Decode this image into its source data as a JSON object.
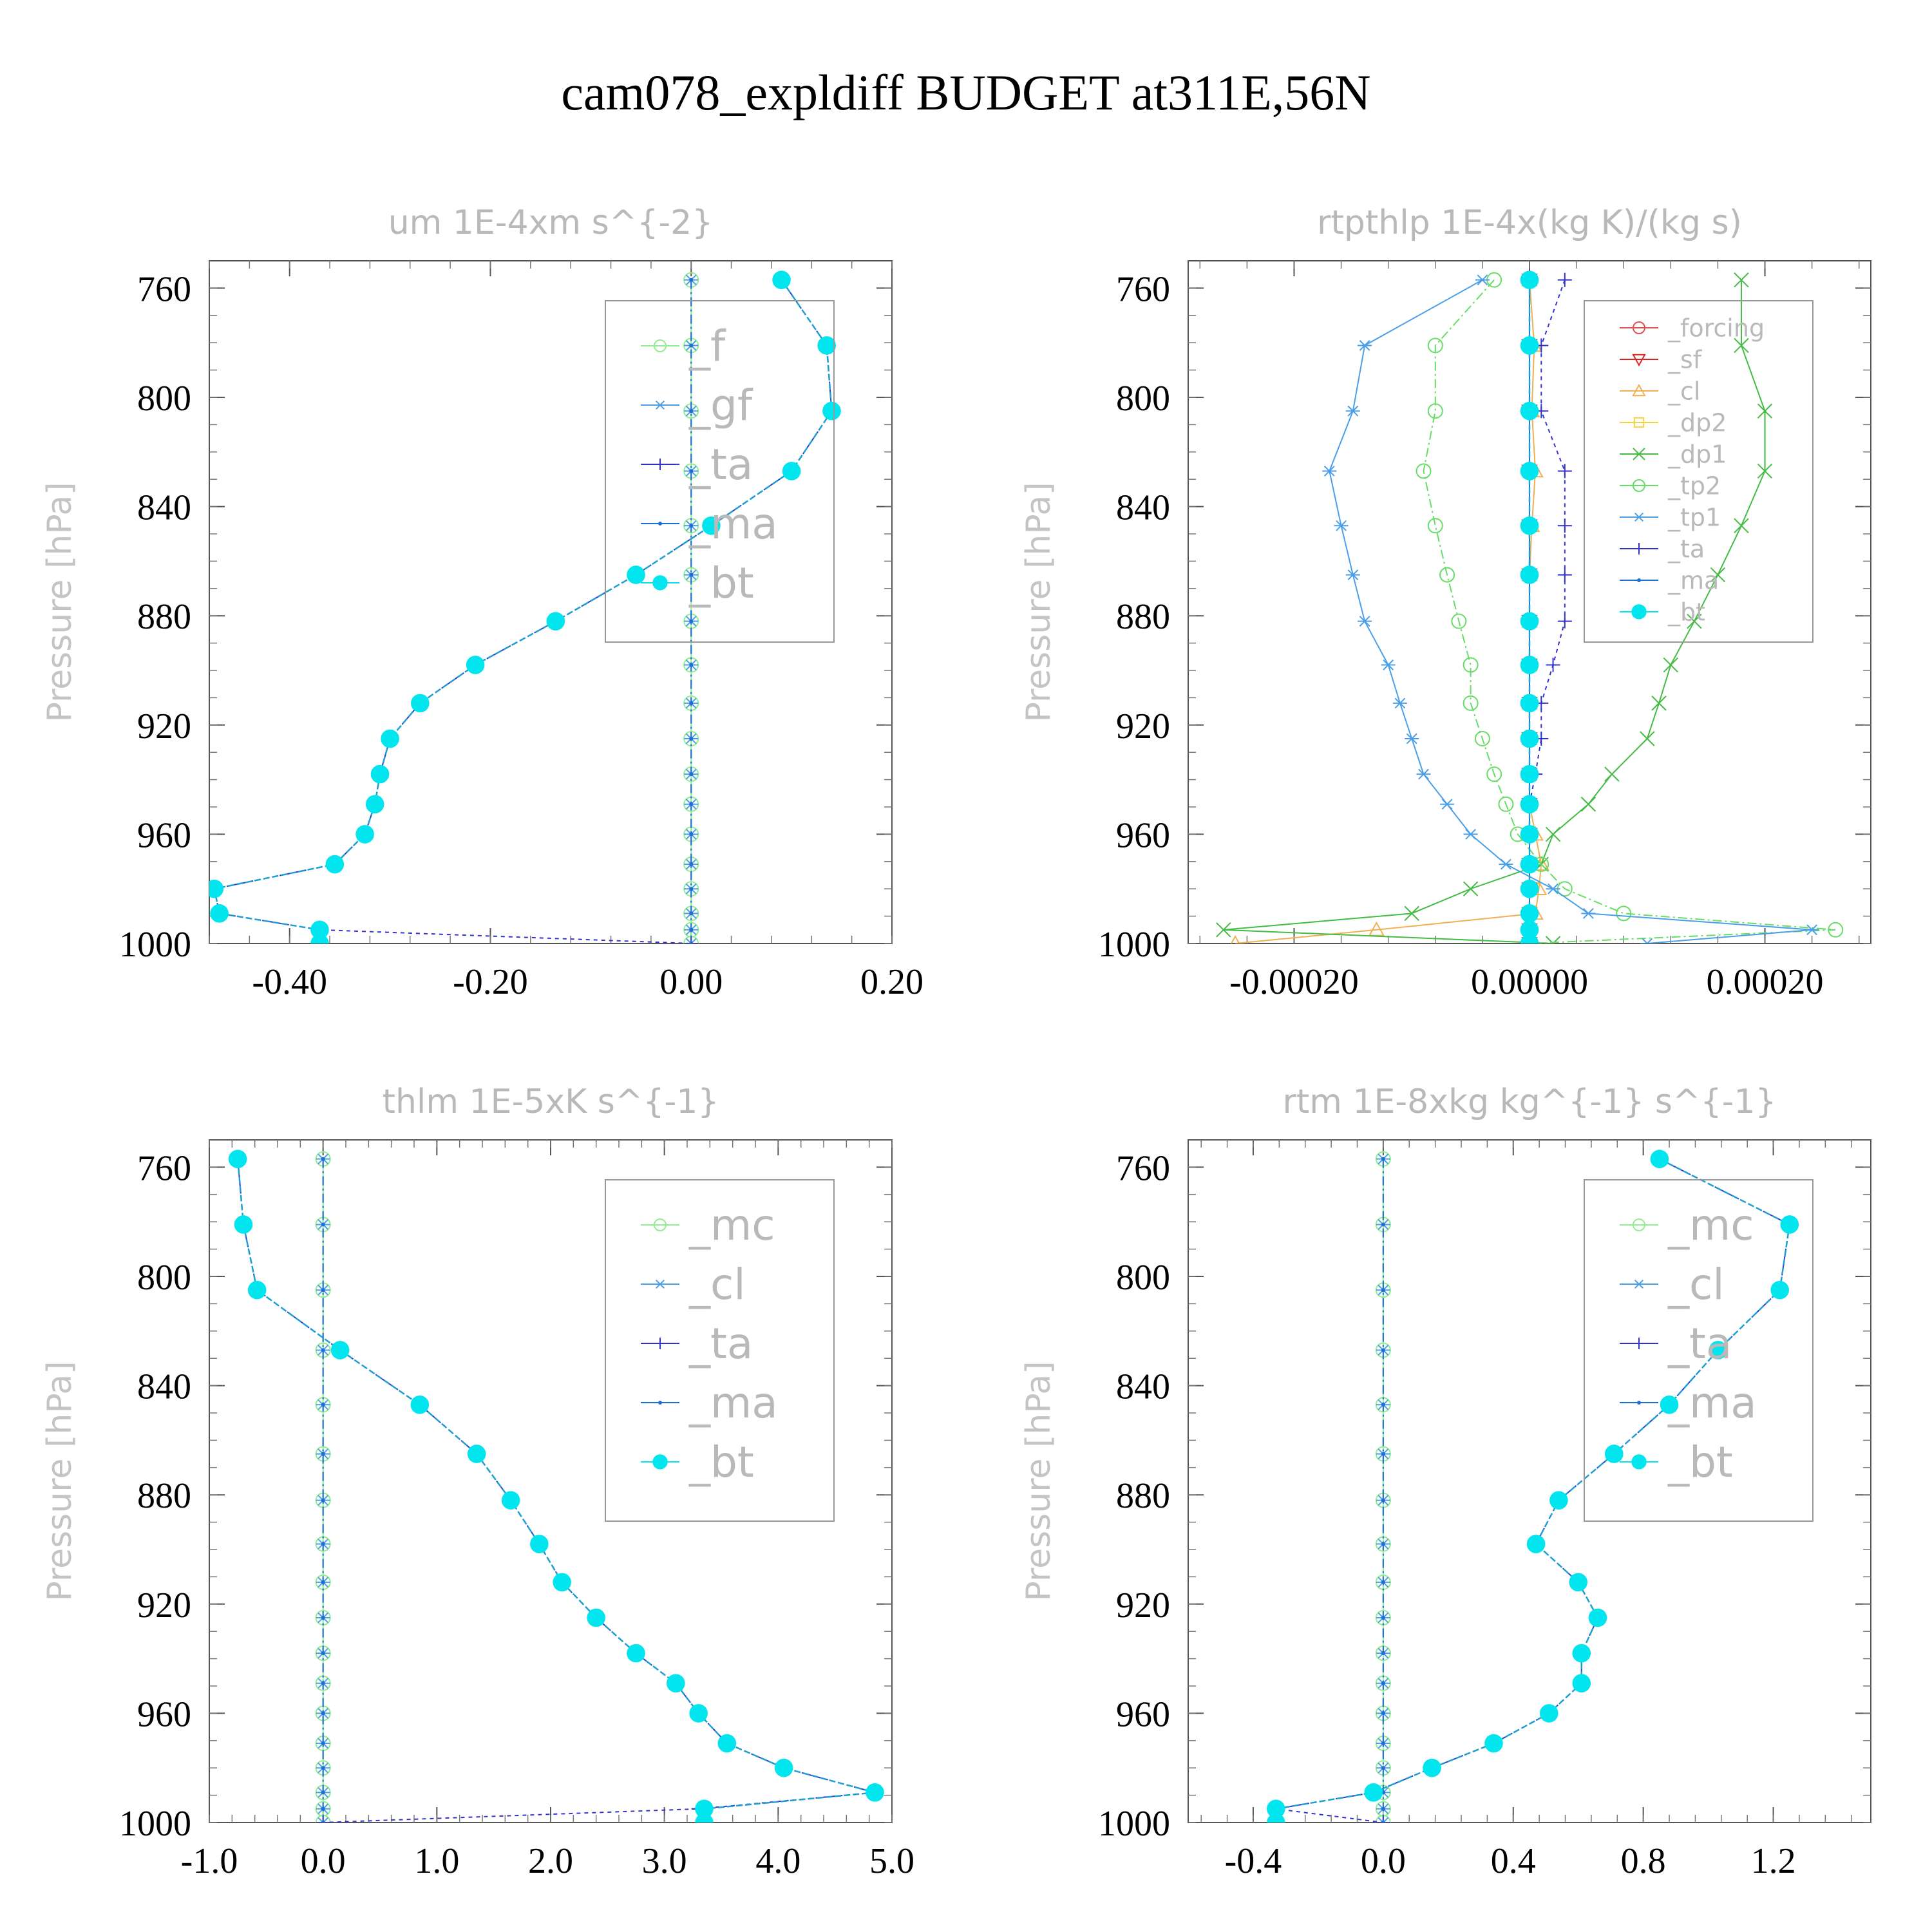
{
  "figure": {
    "title": "cam078_expldiff  BUDGET at311E,56N"
  },
  "colors": {
    "f": "#90ee90",
    "gf": "#4a9fe8",
    "ta": "#3333cc",
    "ma": "#1f6fd0",
    "bt": "#00e5ee",
    "forcing": "#e05050",
    "sf": "#dd2222",
    "cl": "#f0b050",
    "dp2": "#f5d040",
    "dp1": "#44bb44",
    "tp2": "#66dd66",
    "tp1": "#4a9fe8",
    "mc": "#90ee90",
    "bt_line": "#1f9fd0"
  },
  "chart_data": [
    {
      "type": "line",
      "title": "um  1E-4xm s^{-2}",
      "ylabel": "Pressure [hPa]",
      "xlim": [
        -0.48,
        0.2
      ],
      "ylim": [
        1000,
        750
      ],
      "xticks": [
        "-0.40",
        "-0.20",
        "0.00",
        "0.20"
      ],
      "xtick_values": [
        -0.4,
        -0.2,
        0.0,
        0.2
      ],
      "yticks": [
        "760",
        "800",
        "840",
        "880",
        "920",
        "960",
        "1000"
      ],
      "ytick_values": [
        760,
        800,
        840,
        880,
        920,
        960,
        1000
      ],
      "legend_position": "top-right",
      "legend_font": 66,
      "pressure": [
        757,
        781,
        805,
        827,
        847,
        865,
        882,
        898,
        912,
        925,
        938,
        949,
        960,
        971,
        980,
        989,
        995,
        1000
      ],
      "series": [
        {
          "name": "_f",
          "key": "f",
          "marker": "circle-open",
          "values": [
            0,
            0,
            0,
            0,
            0,
            0,
            0,
            0,
            0,
            0,
            0,
            0,
            0,
            0,
            0,
            0,
            0,
            0
          ]
        },
        {
          "name": "_gf",
          "key": "gf",
          "marker": "star",
          "values": [
            0,
            0,
            0,
            0,
            0,
            0,
            0,
            0,
            0,
            0,
            0,
            0,
            0,
            0,
            0,
            0,
            0,
            0
          ]
        },
        {
          "name": "_ta",
          "key": "ta",
          "marker": "plus",
          "dashed": true,
          "values": [
            0.09,
            0.135,
            0.14,
            0.1,
            0.02,
            -0.055,
            -0.135,
            -0.215,
            -0.27,
            -0.3,
            -0.31,
            -0.315,
            -0.325,
            -0.355,
            -0.475,
            -0.47,
            -0.37,
            0
          ]
        },
        {
          "name": "_ma",
          "key": "ma",
          "marker": "dot",
          "values": [
            0,
            0,
            0,
            0,
            0,
            0,
            0,
            0,
            0,
            0,
            0,
            0,
            0,
            0,
            0,
            0,
            0,
            0
          ]
        },
        {
          "name": "_bt",
          "key": "bt",
          "marker": "filled",
          "values": [
            0.09,
            0.135,
            0.14,
            0.1,
            0.02,
            -0.055,
            -0.135,
            -0.215,
            -0.27,
            -0.3,
            -0.31,
            -0.315,
            -0.325,
            -0.355,
            -0.475,
            -0.47,
            -0.37,
            -0.37
          ]
        }
      ]
    },
    {
      "type": "line",
      "title": "rtpthlp  1E-4x(kg K)/(kg s)",
      "ylabel": "Pressure [hPa]",
      "xlim": [
        -0.00029,
        0.00029
      ],
      "ylim": [
        1000,
        750
      ],
      "xticks": [
        "-0.00020",
        "0.00000",
        "0.00020"
      ],
      "xtick_values": [
        -0.0002,
        0.0,
        0.0002
      ],
      "yticks": [
        "760",
        "800",
        "840",
        "880",
        "920",
        "960",
        "1000"
      ],
      "ytick_values": [
        760,
        800,
        840,
        880,
        920,
        960,
        1000
      ],
      "legend_position": "top-right",
      "legend_font": 38,
      "pressure": [
        757,
        781,
        805,
        827,
        847,
        865,
        882,
        898,
        912,
        925,
        938,
        949,
        960,
        971,
        980,
        989,
        995,
        1000
      ],
      "series": [
        {
          "name": "_forcing",
          "key": "forcing",
          "marker": "circle-open",
          "values": [
            0,
            0,
            0,
            0,
            0,
            0,
            0,
            0,
            0,
            0,
            0,
            0,
            0,
            0,
            0,
            0,
            0,
            0
          ]
        },
        {
          "name": "_sf",
          "key": "sf",
          "marker": "tri-down",
          "values": [
            0,
            0,
            0,
            0,
            0,
            0,
            0,
            0,
            0,
            0,
            0,
            0,
            0,
            0,
            0,
            0,
            0,
            0
          ]
        },
        {
          "name": "_cl",
          "key": "cl",
          "marker": "tri-up",
          "values": [
            0,
            4e-06,
            2e-06,
            5e-06,
            2e-06,
            0,
            0,
            0,
            0,
            0,
            0,
            0,
            5e-06,
            1e-05,
            8e-06,
            5e-06,
            -0.00013,
            -0.00025
          ]
        },
        {
          "name": "_dp2",
          "key": "dp2",
          "marker": "square",
          "values": [
            0,
            0,
            0,
            0,
            0,
            0,
            0,
            0,
            0,
            0,
            0,
            0,
            0,
            0,
            0,
            0,
            0,
            0
          ]
        },
        {
          "name": "_dp1",
          "key": "dp1",
          "marker": "cross",
          "values": [
            0.00018,
            0.00018,
            0.0002,
            0.0002,
            0.00018,
            0.00016,
            0.00014,
            0.00012,
            0.00011,
            0.0001,
            7e-05,
            5e-05,
            2e-05,
            1e-05,
            -5e-05,
            -0.0001,
            -0.00026,
            2e-05
          ]
        },
        {
          "name": "_tp2",
          "key": "tp2",
          "marker": "circle-open",
          "values": [
            -3e-05,
            -8e-05,
            -8e-05,
            -9e-05,
            -8e-05,
            -7e-05,
            -6e-05,
            -5e-05,
            -5e-05,
            -4e-05,
            -3e-05,
            -2e-05,
            -1e-05,
            1e-05,
            3e-05,
            8e-05,
            0.00026,
            0
          ]
        },
        {
          "name": "_tp1",
          "key": "tp1",
          "marker": "star",
          "values": [
            -4e-05,
            -0.00014,
            -0.00015,
            -0.00017,
            -0.00016,
            -0.00015,
            -0.00014,
            -0.00012,
            -0.00011,
            -0.0001,
            -9e-05,
            -7e-05,
            -5e-05,
            -2e-05,
            2e-05,
            5e-05,
            0.00024,
            0.0001
          ]
        },
        {
          "name": "_ta",
          "key": "ta",
          "marker": "plus",
          "dashed": true,
          "values": [
            3e-05,
            1e-05,
            1e-05,
            3e-05,
            3e-05,
            3e-05,
            3e-05,
            2e-05,
            1e-05,
            1e-05,
            5e-06,
            0,
            0,
            0,
            0,
            0,
            0,
            0
          ]
        },
        {
          "name": "_ma",
          "key": "ma",
          "marker": "dot",
          "values": [
            0,
            0,
            0,
            0,
            0,
            0,
            0,
            0,
            0,
            0,
            0,
            0,
            0,
            0,
            0,
            0,
            0,
            0
          ]
        },
        {
          "name": "_bt",
          "key": "bt",
          "marker": "filled",
          "values": [
            0,
            0,
            0,
            0,
            0,
            0,
            0,
            0,
            0,
            0,
            0,
            0,
            0,
            0,
            0,
            0,
            0,
            0
          ]
        }
      ]
    },
    {
      "type": "line",
      "title": "thlm  1E-5xK s^{-1}",
      "ylabel": "Pressure [hPa]",
      "xlim": [
        -1.0,
        5.0
      ],
      "ylim": [
        1000,
        750
      ],
      "xticks": [
        "-1.0",
        "0.0",
        "1.0",
        "2.0",
        "3.0",
        "4.0",
        "5.0"
      ],
      "xtick_values": [
        -1,
        0,
        1,
        2,
        3,
        4,
        5
      ],
      "yticks": [
        "760",
        "800",
        "840",
        "880",
        "920",
        "960",
        "1000"
      ],
      "ytick_values": [
        760,
        800,
        840,
        880,
        920,
        960,
        1000
      ],
      "legend_position": "top-right",
      "legend_font": 66,
      "pressure": [
        757,
        781,
        805,
        827,
        847,
        865,
        882,
        898,
        912,
        925,
        938,
        949,
        960,
        971,
        980,
        989,
        995,
        1000
      ],
      "series": [
        {
          "name": "_mc",
          "key": "mc",
          "marker": "circle-open",
          "values": [
            0,
            0,
            0,
            0,
            0,
            0,
            0,
            0,
            0,
            0,
            0,
            0,
            0,
            0,
            0,
            0,
            0,
            0
          ]
        },
        {
          "name": "_cl",
          "key": "gf",
          "marker": "star",
          "values": [
            0,
            0,
            0,
            0,
            0,
            0,
            0,
            0,
            0,
            0,
            0,
            0,
            0,
            0,
            0,
            0,
            0,
            0
          ]
        },
        {
          "name": "_ta",
          "key": "ta",
          "marker": "plus",
          "dashed": true,
          "values": [
            -0.75,
            -0.7,
            -0.58,
            0.15,
            0.85,
            1.35,
            1.65,
            1.9,
            2.1,
            2.4,
            2.75,
            3.1,
            3.3,
            3.55,
            4.05,
            4.85,
            3.3,
            0
          ]
        },
        {
          "name": "_ma",
          "key": "ma",
          "marker": "dot",
          "values": [
            0,
            0,
            0,
            0,
            0,
            0,
            0,
            0,
            0,
            0,
            0,
            0,
            0,
            0,
            0,
            0,
            0,
            0
          ]
        },
        {
          "name": "_bt",
          "key": "bt",
          "marker": "filled",
          "values": [
            -0.75,
            -0.7,
            -0.58,
            0.15,
            0.85,
            1.35,
            1.65,
            1.9,
            2.1,
            2.4,
            2.75,
            3.1,
            3.3,
            3.55,
            4.05,
            4.85,
            3.35,
            3.35
          ]
        }
      ]
    },
    {
      "type": "line",
      "title": "rtm  1E-8xkg kg^{-1} s^{-1}",
      "ylabel": "Pressure [hPa]",
      "xlim": [
        -0.6,
        1.5
      ],
      "ylim": [
        1000,
        750
      ],
      "xticks": [
        "-0.4",
        "0.0",
        "0.4",
        "0.8",
        "1.2"
      ],
      "xtick_values": [
        -0.4,
        0.0,
        0.4,
        0.8,
        1.2
      ],
      "yticks": [
        "760",
        "800",
        "840",
        "880",
        "920",
        "960",
        "1000"
      ],
      "ytick_values": [
        760,
        800,
        840,
        880,
        920,
        960,
        1000
      ],
      "legend_position": "top-right",
      "legend_font": 66,
      "pressure": [
        757,
        781,
        805,
        827,
        847,
        865,
        882,
        898,
        912,
        925,
        938,
        949,
        960,
        971,
        980,
        989,
        995,
        1000
      ],
      "series": [
        {
          "name": "_mc",
          "key": "mc",
          "marker": "circle-open",
          "values": [
            0,
            0,
            0,
            0,
            0,
            0,
            0,
            0,
            0,
            0,
            0,
            0,
            0,
            0,
            0,
            0,
            0,
            0
          ]
        },
        {
          "name": "_cl",
          "key": "gf",
          "marker": "star",
          "values": [
            0,
            0,
            0,
            0,
            0,
            0,
            0,
            0,
            0,
            0,
            0,
            0,
            0,
            0,
            0,
            0,
            0,
            0
          ]
        },
        {
          "name": "_ta",
          "key": "ta",
          "marker": "plus",
          "dashed": true,
          "values": [
            0.85,
            1.25,
            1.22,
            1.03,
            0.88,
            0.71,
            0.54,
            0.47,
            0.6,
            0.66,
            0.61,
            0.61,
            0.51,
            0.34,
            0.15,
            -0.03,
            -0.33,
            0
          ]
        },
        {
          "name": "_ma",
          "key": "ma",
          "marker": "dot",
          "values": [
            0,
            0,
            0,
            0,
            0,
            0,
            0,
            0,
            0,
            0,
            0,
            0,
            0,
            0,
            0,
            0,
            0,
            0
          ]
        },
        {
          "name": "_bt",
          "key": "bt",
          "marker": "filled",
          "values": [
            0.85,
            1.25,
            1.22,
            1.03,
            0.88,
            0.71,
            0.54,
            0.47,
            0.6,
            0.66,
            0.61,
            0.61,
            0.51,
            0.34,
            0.15,
            -0.03,
            -0.33,
            -0.33
          ]
        }
      ]
    }
  ]
}
